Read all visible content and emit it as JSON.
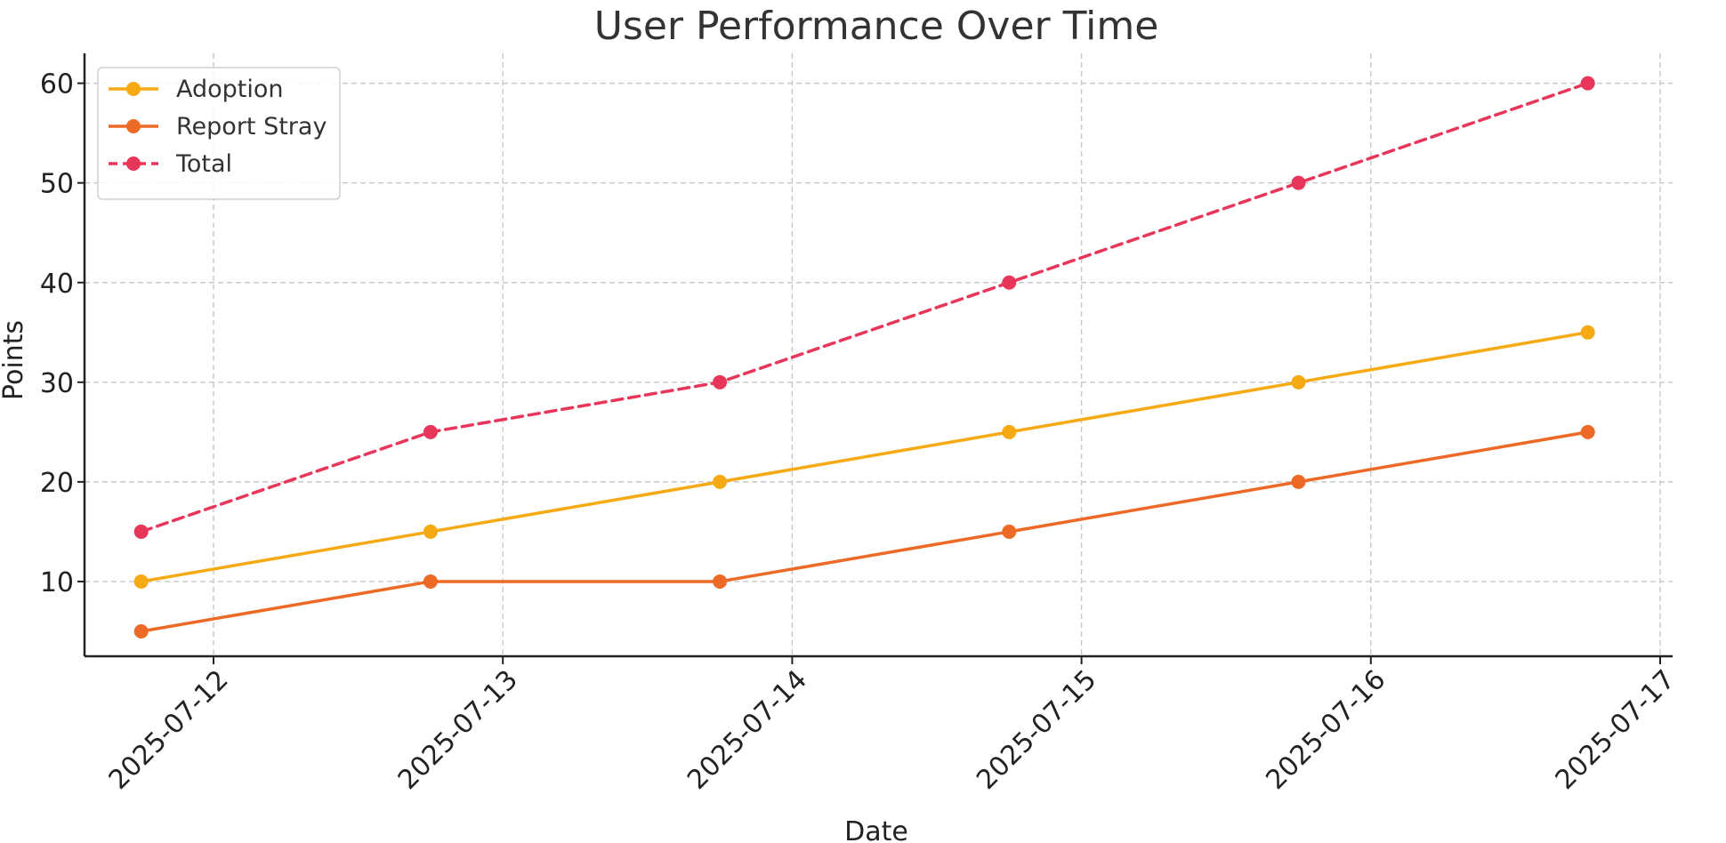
{
  "chart_data": {
    "type": "line",
    "title": "User Performance Over Time",
    "xlabel": "Date",
    "ylabel": "Points",
    "x": [
      "2025-07-11 18:00",
      "2025-07-12 18:00",
      "2025-07-13 18:00",
      "2025-07-14 18:00",
      "2025-07-15 18:00",
      "2025-07-16 18:00"
    ],
    "x_ticks": [
      "2025-07-12",
      "2025-07-13",
      "2025-07-14",
      "2025-07-15",
      "2025-07-16",
      "2025-07-17"
    ],
    "y_ticks": [
      10,
      20,
      30,
      40,
      50,
      60
    ],
    "ylim": [
      2.5,
      63
    ],
    "grid": true,
    "legend_position": "top-left",
    "series": [
      {
        "name": "Adoption",
        "values": [
          10,
          15,
          20,
          25,
          30,
          35
        ],
        "color": "#f5a912",
        "style": "solid"
      },
      {
        "name": "Report Stray",
        "values": [
          5,
          10,
          10,
          15,
          20,
          25
        ],
        "color": "#ec6a25",
        "style": "solid"
      },
      {
        "name": "Total",
        "values": [
          15,
          25,
          30,
          40,
          50,
          60
        ],
        "color": "#e8365a",
        "style": "dashed"
      }
    ]
  }
}
